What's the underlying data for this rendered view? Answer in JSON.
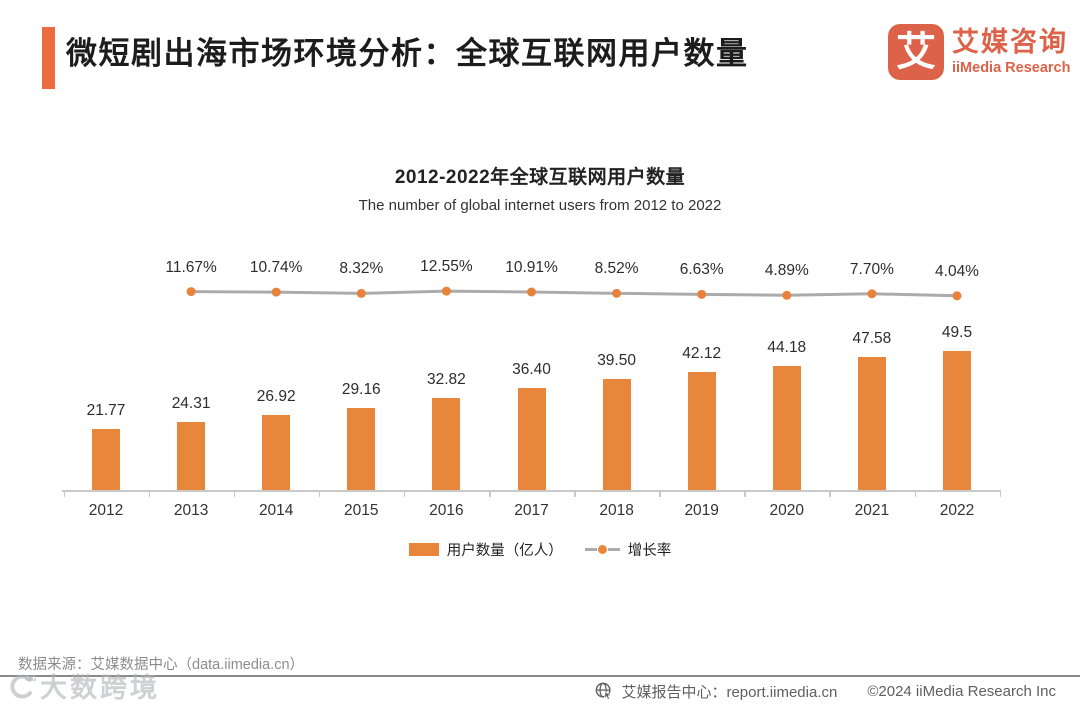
{
  "header": {
    "title": "微短剧出海市场环境分析：全球互联网用户数量",
    "logo": {
      "glyph": "艾",
      "name_cn": "艾媒咨询",
      "name_en": "iiMedia Research"
    }
  },
  "chart_data": {
    "type": "bar",
    "title": "2012-2022年全球互联网用户数量",
    "subtitle": "The number of global internet users from 2012 to 2022",
    "categories": [
      "2012",
      "2013",
      "2014",
      "2015",
      "2016",
      "2017",
      "2018",
      "2019",
      "2020",
      "2021",
      "2022"
    ],
    "series": [
      {
        "name": "用户数量（亿人）",
        "type": "bar",
        "values": [
          21.77,
          24.31,
          26.92,
          29.16,
          32.82,
          36.4,
          39.5,
          42.12,
          44.18,
          47.58,
          49.5
        ],
        "labels": [
          "21.77",
          "24.31",
          "26.92",
          "29.16",
          "32.82",
          "36.40",
          "39.50",
          "42.12",
          "44.18",
          "47.58",
          "49.5"
        ]
      },
      {
        "name": "增长率",
        "type": "line",
        "values": [
          null,
          11.67,
          10.74,
          8.32,
          12.55,
          10.91,
          8.52,
          6.63,
          4.89,
          7.7,
          4.04
        ],
        "labels": [
          "",
          "11.67%",
          "10.74%",
          "8.32%",
          "12.55%",
          "10.91%",
          "8.52%",
          "6.63%",
          "4.89%",
          "7.70%",
          "4.04%"
        ]
      }
    ],
    "legend_position": "bottom",
    "grid": false,
    "colors": {
      "bar": "#E8873C",
      "line": "#ABABAB",
      "dot": "#E8823B",
      "accent": "#EE6A41",
      "brand": "#DC6349"
    }
  },
  "footer": {
    "source": "数据来源：艾媒数据中心（data.iimedia.cn）",
    "watermark": "大数跨境",
    "report_center": "艾媒报告中心：report.iimedia.cn",
    "copyright": "©2024  iiMedia Research Inc"
  }
}
